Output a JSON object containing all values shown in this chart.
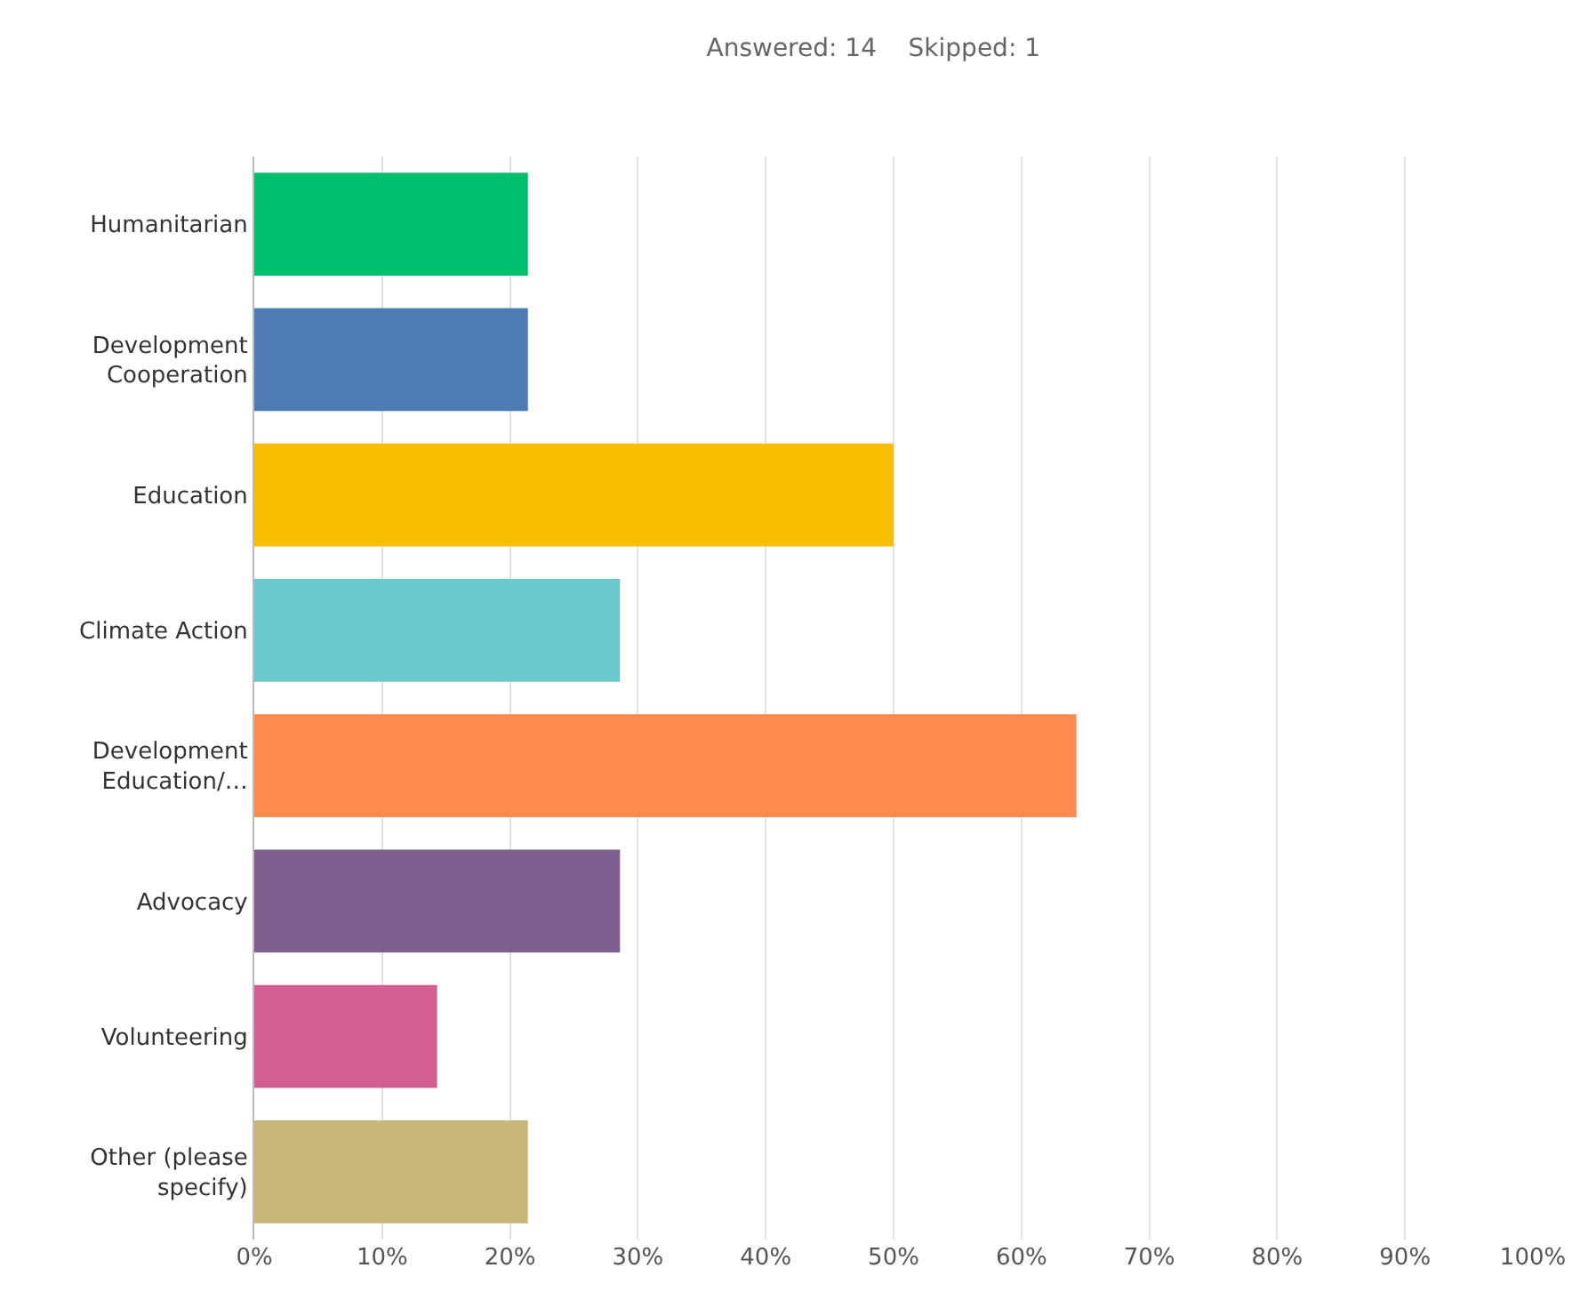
{
  "chart_data": {
    "type": "bar",
    "orientation": "horizontal",
    "title": "Answered: 14    Skipped: 1",
    "categories": [
      "Humanitarian",
      "Development\nCooperation",
      "Education",
      "Climate Action",
      "Development\nEducation/…",
      "Advocacy",
      "Volunteering",
      "Other (please\nspecify)"
    ],
    "values": [
      21.4,
      21.4,
      50,
      28.6,
      64.3,
      28.6,
      14.3,
      21.4
    ],
    "colors": [
      "#00bf6f",
      "#507cb6",
      "#f9be00",
      "#6bc8cd",
      "#ff8b4f",
      "#7f5f90",
      "#d25f90",
      "#c7b879"
    ],
    "xlim": [
      0,
      100
    ],
    "xticks": [
      {
        "value": 0,
        "label": "0%"
      },
      {
        "value": 10,
        "label": "10%"
      },
      {
        "value": 20,
        "label": "20%"
      },
      {
        "value": 30,
        "label": "30%"
      },
      {
        "value": 40,
        "label": "40%"
      },
      {
        "value": 50,
        "label": "50%"
      },
      {
        "value": 60,
        "label": "60%"
      },
      {
        "value": 70,
        "label": "70%"
      },
      {
        "value": 80,
        "label": "80%"
      },
      {
        "value": 90,
        "label": "90%"
      },
      {
        "value": 100,
        "label": "100%"
      }
    ],
    "grid": "x"
  }
}
